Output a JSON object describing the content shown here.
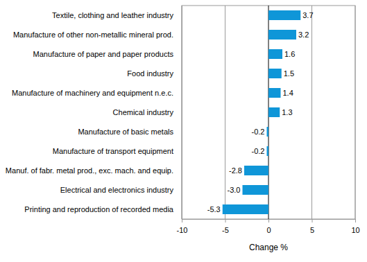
{
  "chart_data": {
    "type": "bar",
    "orientation": "horizontal",
    "categories": [
      "Textile, clothing and leather industry",
      "Manufacture of other non-metallic mineral prod.",
      "Manufacture of paper and paper products",
      "Food industry",
      "Manufacture of machinery and equipment n.e.c.",
      "Chemical industry",
      "Manufacture of basic metals",
      "Manufacture of transport equipment",
      "Manuf. of fabr. metal prod., exc. mach. and equip.",
      "Electrical and electronics industry",
      "Printing and reproduction of recorded media"
    ],
    "values": [
      3.7,
      3.2,
      1.6,
      1.5,
      1.4,
      1.3,
      -0.2,
      -0.2,
      -2.8,
      -3.0,
      -5.3
    ],
    "value_labels": [
      "3.7",
      "3.2",
      "1.6",
      "1.5",
      "1.4",
      "1.3",
      "-0.2",
      "-0.2",
      "-2.8",
      "-3.0",
      "-5.3"
    ],
    "x_label": "Change %",
    "color": "#0f96d8",
    "xlim": [
      -10,
      10
    ],
    "xticks": [
      -10,
      -5,
      0,
      5,
      10
    ],
    "grid": true,
    "data_labels": true
  }
}
